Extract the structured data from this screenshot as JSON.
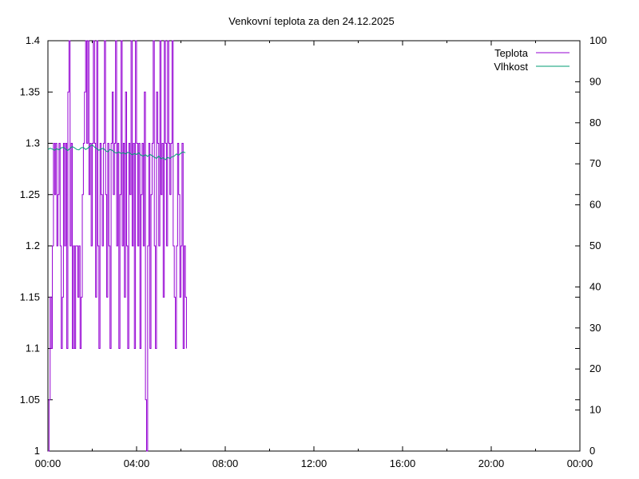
{
  "chart_data": {
    "type": "line",
    "title": "Venkovní teplota za den 24.12.2025",
    "xlabel": "",
    "ylabel": "",
    "y2label": "",
    "x_ticks": [
      "00:00",
      "04:00",
      "08:00",
      "12:00",
      "16:00",
      "20:00",
      "00:00"
    ],
    "x_range_hours": [
      0,
      24
    ],
    "y_ticks": [
      "1",
      "1.05",
      "1.1",
      "1.15",
      "1.2",
      "1.25",
      "1.3",
      "1.35",
      "1.4"
    ],
    "ylim": [
      1.0,
      1.4
    ],
    "y2_ticks": [
      "0",
      "10",
      "20",
      "30",
      "40",
      "50",
      "60",
      "70",
      "80",
      "90",
      "100"
    ],
    "y2lim": [
      0,
      100
    ],
    "grid": false,
    "legend_position": "top-right",
    "colors": {
      "teplota": "#9400d3",
      "vlhkost": "#009e73"
    },
    "series": [
      {
        "name": "Teplota",
        "axis": "left",
        "x": [
          0.0,
          0.05,
          0.1,
          0.15,
          0.2,
          0.25,
          0.3,
          0.35,
          0.4,
          0.45,
          0.5,
          0.55,
          0.6,
          0.65,
          0.7,
          0.75,
          0.8,
          0.85,
          0.9,
          0.95,
          1.0,
          1.05,
          1.1,
          1.15,
          1.2,
          1.25,
          1.3,
          1.35,
          1.4,
          1.45,
          1.5,
          1.55,
          1.6,
          1.65,
          1.7,
          1.75,
          1.8,
          1.85,
          1.9,
          1.95,
          2.0,
          2.05,
          2.1,
          2.15,
          2.2,
          2.25,
          2.3,
          2.35,
          2.4,
          2.45,
          2.5,
          2.55,
          2.6,
          2.65,
          2.7,
          2.75,
          2.8,
          2.85,
          2.9,
          2.95,
          3.0,
          3.05,
          3.1,
          3.15,
          3.2,
          3.25,
          3.3,
          3.35,
          3.4,
          3.45,
          3.5,
          3.55,
          3.6,
          3.65,
          3.7,
          3.75,
          3.8,
          3.85,
          3.9,
          3.95,
          4.0,
          4.05,
          4.1,
          4.15,
          4.2,
          4.25,
          4.3,
          4.35,
          4.4,
          4.45,
          4.5,
          4.55,
          4.6,
          4.65,
          4.7,
          4.75,
          4.8,
          4.85,
          4.9,
          4.95,
          5.0,
          5.05,
          5.1,
          5.15,
          5.2,
          5.25,
          5.3,
          5.35,
          5.4,
          5.45,
          5.5,
          5.55,
          5.6,
          5.65,
          5.7,
          5.75,
          5.8,
          5.85,
          5.9,
          5.95,
          6.0,
          6.05,
          6.1,
          6.15,
          6.2,
          6.25
        ],
        "values": [
          1.0,
          1.05,
          1.15,
          1.1,
          1.2,
          1.3,
          1.25,
          1.3,
          1.2,
          1.25,
          1.3,
          1.2,
          1.1,
          1.15,
          1.3,
          1.2,
          1.3,
          1.1,
          1.35,
          1.4,
          1.2,
          1.3,
          1.1,
          1.2,
          1.1,
          1.2,
          1.2,
          1.15,
          1.2,
          1.1,
          1.15,
          1.25,
          1.3,
          1.35,
          1.4,
          1.3,
          1.4,
          1.25,
          1.3,
          1.2,
          1.3,
          1.4,
          1.3,
          1.15,
          1.4,
          1.2,
          1.1,
          1.3,
          1.25,
          1.2,
          1.3,
          1.4,
          1.25,
          1.15,
          1.3,
          1.2,
          1.1,
          1.3,
          1.35,
          1.25,
          1.3,
          1.4,
          1.2,
          1.3,
          1.1,
          1.25,
          1.4,
          1.2,
          1.3,
          1.15,
          1.35,
          1.2,
          1.1,
          1.3,
          1.25,
          1.4,
          1.2,
          1.3,
          1.1,
          1.4,
          1.3,
          1.2,
          1.3,
          1.1,
          1.25,
          1.3,
          1.2,
          1.35,
          1.05,
          1.0,
          1.2,
          1.3,
          1.1,
          1.25,
          1.3,
          1.4,
          1.2,
          1.1,
          1.35,
          1.3,
          1.2,
          1.4,
          1.25,
          1.3,
          1.15,
          1.4,
          1.3,
          1.2,
          1.4,
          1.3,
          1.25,
          1.3,
          1.4,
          1.2,
          1.15,
          1.1,
          1.2,
          1.3,
          1.25,
          1.15,
          1.2,
          1.3,
          1.1,
          1.2,
          1.15,
          1.1
        ]
      },
      {
        "name": "Vlhkost",
        "axis": "right",
        "x": [
          0.0,
          0.1,
          0.2,
          0.3,
          0.4,
          0.5,
          0.6,
          0.7,
          0.8,
          0.9,
          1.0,
          1.1,
          1.2,
          1.3,
          1.4,
          1.5,
          1.6,
          1.7,
          1.8,
          1.9,
          2.0,
          2.1,
          2.2,
          2.3,
          2.4,
          2.5,
          2.6,
          2.7,
          2.8,
          2.9,
          3.0,
          3.1,
          3.2,
          3.3,
          3.4,
          3.5,
          3.6,
          3.7,
          3.8,
          3.9,
          4.0,
          4.1,
          4.2,
          4.3,
          4.4,
          4.5,
          4.6,
          4.7,
          4.8,
          4.9,
          5.0,
          5.1,
          5.2,
          5.3,
          5.4,
          5.5,
          5.6,
          5.7,
          5.8,
          5.9,
          6.0,
          6.1,
          6.2
        ],
        "values": [
          73.5,
          73.8,
          73.6,
          73.3,
          73.7,
          73.4,
          73.9,
          74.0,
          73.6,
          73.2,
          73.8,
          74.2,
          73.9,
          73.5,
          73.4,
          73.9,
          74.0,
          73.5,
          73.8,
          74.3,
          74.6,
          74.1,
          73.7,
          73.3,
          73.6,
          73.8,
          73.2,
          72.9,
          73.5,
          73.3,
          72.8,
          72.6,
          72.9,
          72.5,
          72.7,
          72.4,
          72.8,
          72.6,
          72.2,
          72.5,
          72.3,
          72.7,
          72.1,
          71.9,
          72.2,
          71.8,
          72.3,
          72.0,
          71.6,
          71.3,
          71.9,
          71.2,
          71.5,
          71.0,
          71.6,
          71.3,
          71.7,
          71.9,
          72.4,
          72.1,
          72.6,
          72.9,
          72.7
        ]
      }
    ]
  }
}
